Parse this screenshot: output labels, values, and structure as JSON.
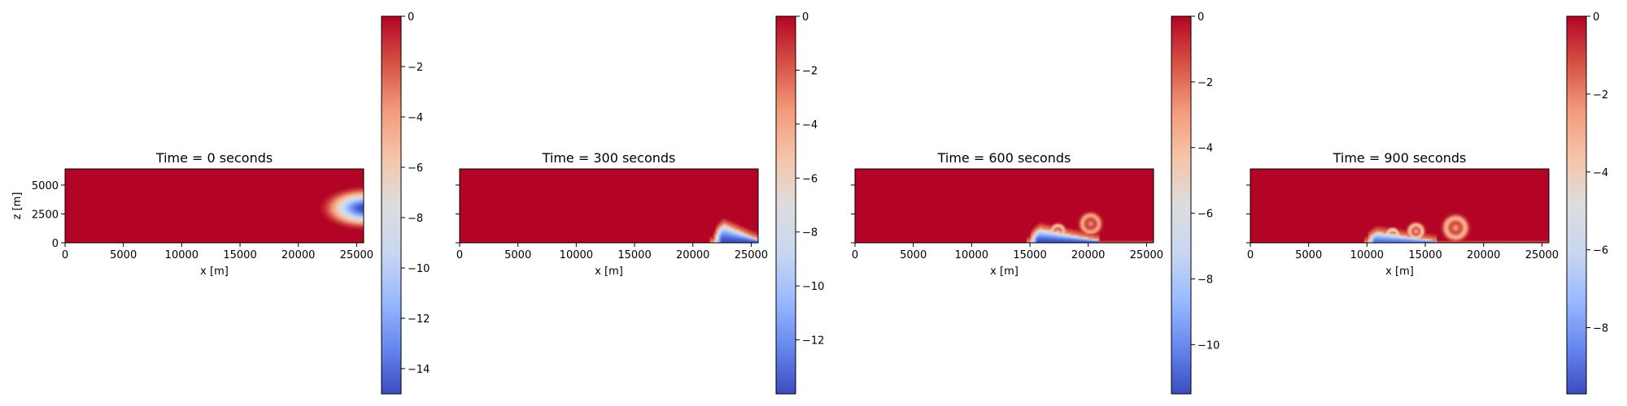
{
  "colormap": {
    "name": "coolwarm",
    "stops": [
      "#3b4cc0",
      "#6788ee",
      "#9abbff",
      "#c9d7f0",
      "#dddddd",
      "#f6c4a9",
      "#f49a7b",
      "#d65244",
      "#b40426"
    ]
  },
  "chart_data": [
    {
      "type": "heatmap",
      "title": "Time = 0 seconds",
      "xlabel": "x [m]",
      "ylabel": "z [m]",
      "xlim": [
        0,
        25600
      ],
      "ylim": [
        0,
        6400
      ],
      "xticks": [
        "0",
        "5000",
        "10000",
        "15000",
        "20000",
        "25000"
      ],
      "yticks": [
        "0",
        "2500",
        "5000"
      ],
      "show_ytick_labels": true,
      "colorbar": {
        "min": -15,
        "max": 0,
        "ticks": [
          "0",
          "−2",
          "−4",
          "−6",
          "−8",
          "−10",
          "−12",
          "−14"
        ],
        "tick_values": [
          0,
          -2,
          -4,
          -6,
          -8,
          -10,
          -12,
          -14
        ]
      },
      "features": [
        {
          "kind": "bubble",
          "x_center": 25600,
          "z_center": 3000,
          "x_radius": 4000,
          "z_radius": 2000,
          "min_value": -15
        }
      ]
    },
    {
      "type": "heatmap",
      "title": "Time = 300 seconds",
      "xlabel": "x [m]",
      "ylabel": "",
      "xlim": [
        0,
        25600
      ],
      "ylim": [
        0,
        6400
      ],
      "xticks": [
        "0",
        "5000",
        "10000",
        "15000",
        "20000",
        "25000"
      ],
      "yticks": [
        "",
        "",
        ""
      ],
      "show_ytick_labels": false,
      "colorbar": {
        "min": -14,
        "max": 0,
        "ticks": [
          "0",
          "−2",
          "−4",
          "−6",
          "−8",
          "−10",
          "−12"
        ],
        "tick_values": [
          0,
          -2,
          -4,
          -6,
          -8,
          -10,
          -12
        ]
      },
      "features": [
        {
          "kind": "current-head",
          "x_front": 21800,
          "x_end": 25600,
          "head_height": 2000,
          "min_value": -14
        }
      ]
    },
    {
      "type": "heatmap",
      "title": "Time = 600 seconds",
      "xlabel": "x [m]",
      "ylabel": "",
      "xlim": [
        0,
        25600
      ],
      "ylim": [
        0,
        6400
      ],
      "xticks": [
        "0",
        "5000",
        "10000",
        "15000",
        "20000",
        "25000"
      ],
      "yticks": [
        "",
        "",
        ""
      ],
      "show_ytick_labels": false,
      "colorbar": {
        "min": -11.5,
        "max": 0,
        "ticks": [
          "0",
          "−2",
          "−4",
          "−6",
          "−8",
          "−10"
        ],
        "tick_values": [
          0,
          -2,
          -4,
          -6,
          -8,
          -10
        ]
      },
      "features": [
        {
          "kind": "current-front",
          "x_front": 15000,
          "x_end": 21000,
          "head_height": 1400,
          "min_value": -11.5
        },
        {
          "kind": "vortex",
          "x_center": 20200,
          "z_center": 1650,
          "radius": 1300,
          "value": -4.5
        },
        {
          "kind": "vortex",
          "x_center": 17400,
          "z_center": 1000,
          "radius": 900,
          "value": -6
        }
      ]
    },
    {
      "type": "heatmap",
      "title": "Time = 900 seconds",
      "xlabel": "x [m]",
      "ylabel": "",
      "xlim": [
        0,
        25600
      ],
      "ylim": [
        0,
        6400
      ],
      "xticks": [
        "0",
        "5000",
        "10000",
        "15000",
        "20000",
        "25000"
      ],
      "yticks": [
        "",
        "",
        ""
      ],
      "show_ytick_labels": false,
      "colorbar": {
        "min": -9.7,
        "max": 0,
        "ticks": [
          "0",
          "−2",
          "−4",
          "−6",
          "−8"
        ],
        "tick_values": [
          0,
          -2,
          -4,
          -6,
          -8
        ]
      },
      "features": [
        {
          "kind": "current-front",
          "x_front": 10000,
          "x_end": 16000,
          "head_height": 1100,
          "min_value": -9
        },
        {
          "kind": "vortex",
          "x_center": 17600,
          "z_center": 1300,
          "radius": 1500,
          "value": -4.2
        },
        {
          "kind": "vortex",
          "x_center": 14200,
          "z_center": 1000,
          "radius": 1000,
          "value": -5
        },
        {
          "kind": "vortex",
          "x_center": 12200,
          "z_center": 700,
          "radius": 800,
          "value": -6.5
        }
      ]
    }
  ]
}
